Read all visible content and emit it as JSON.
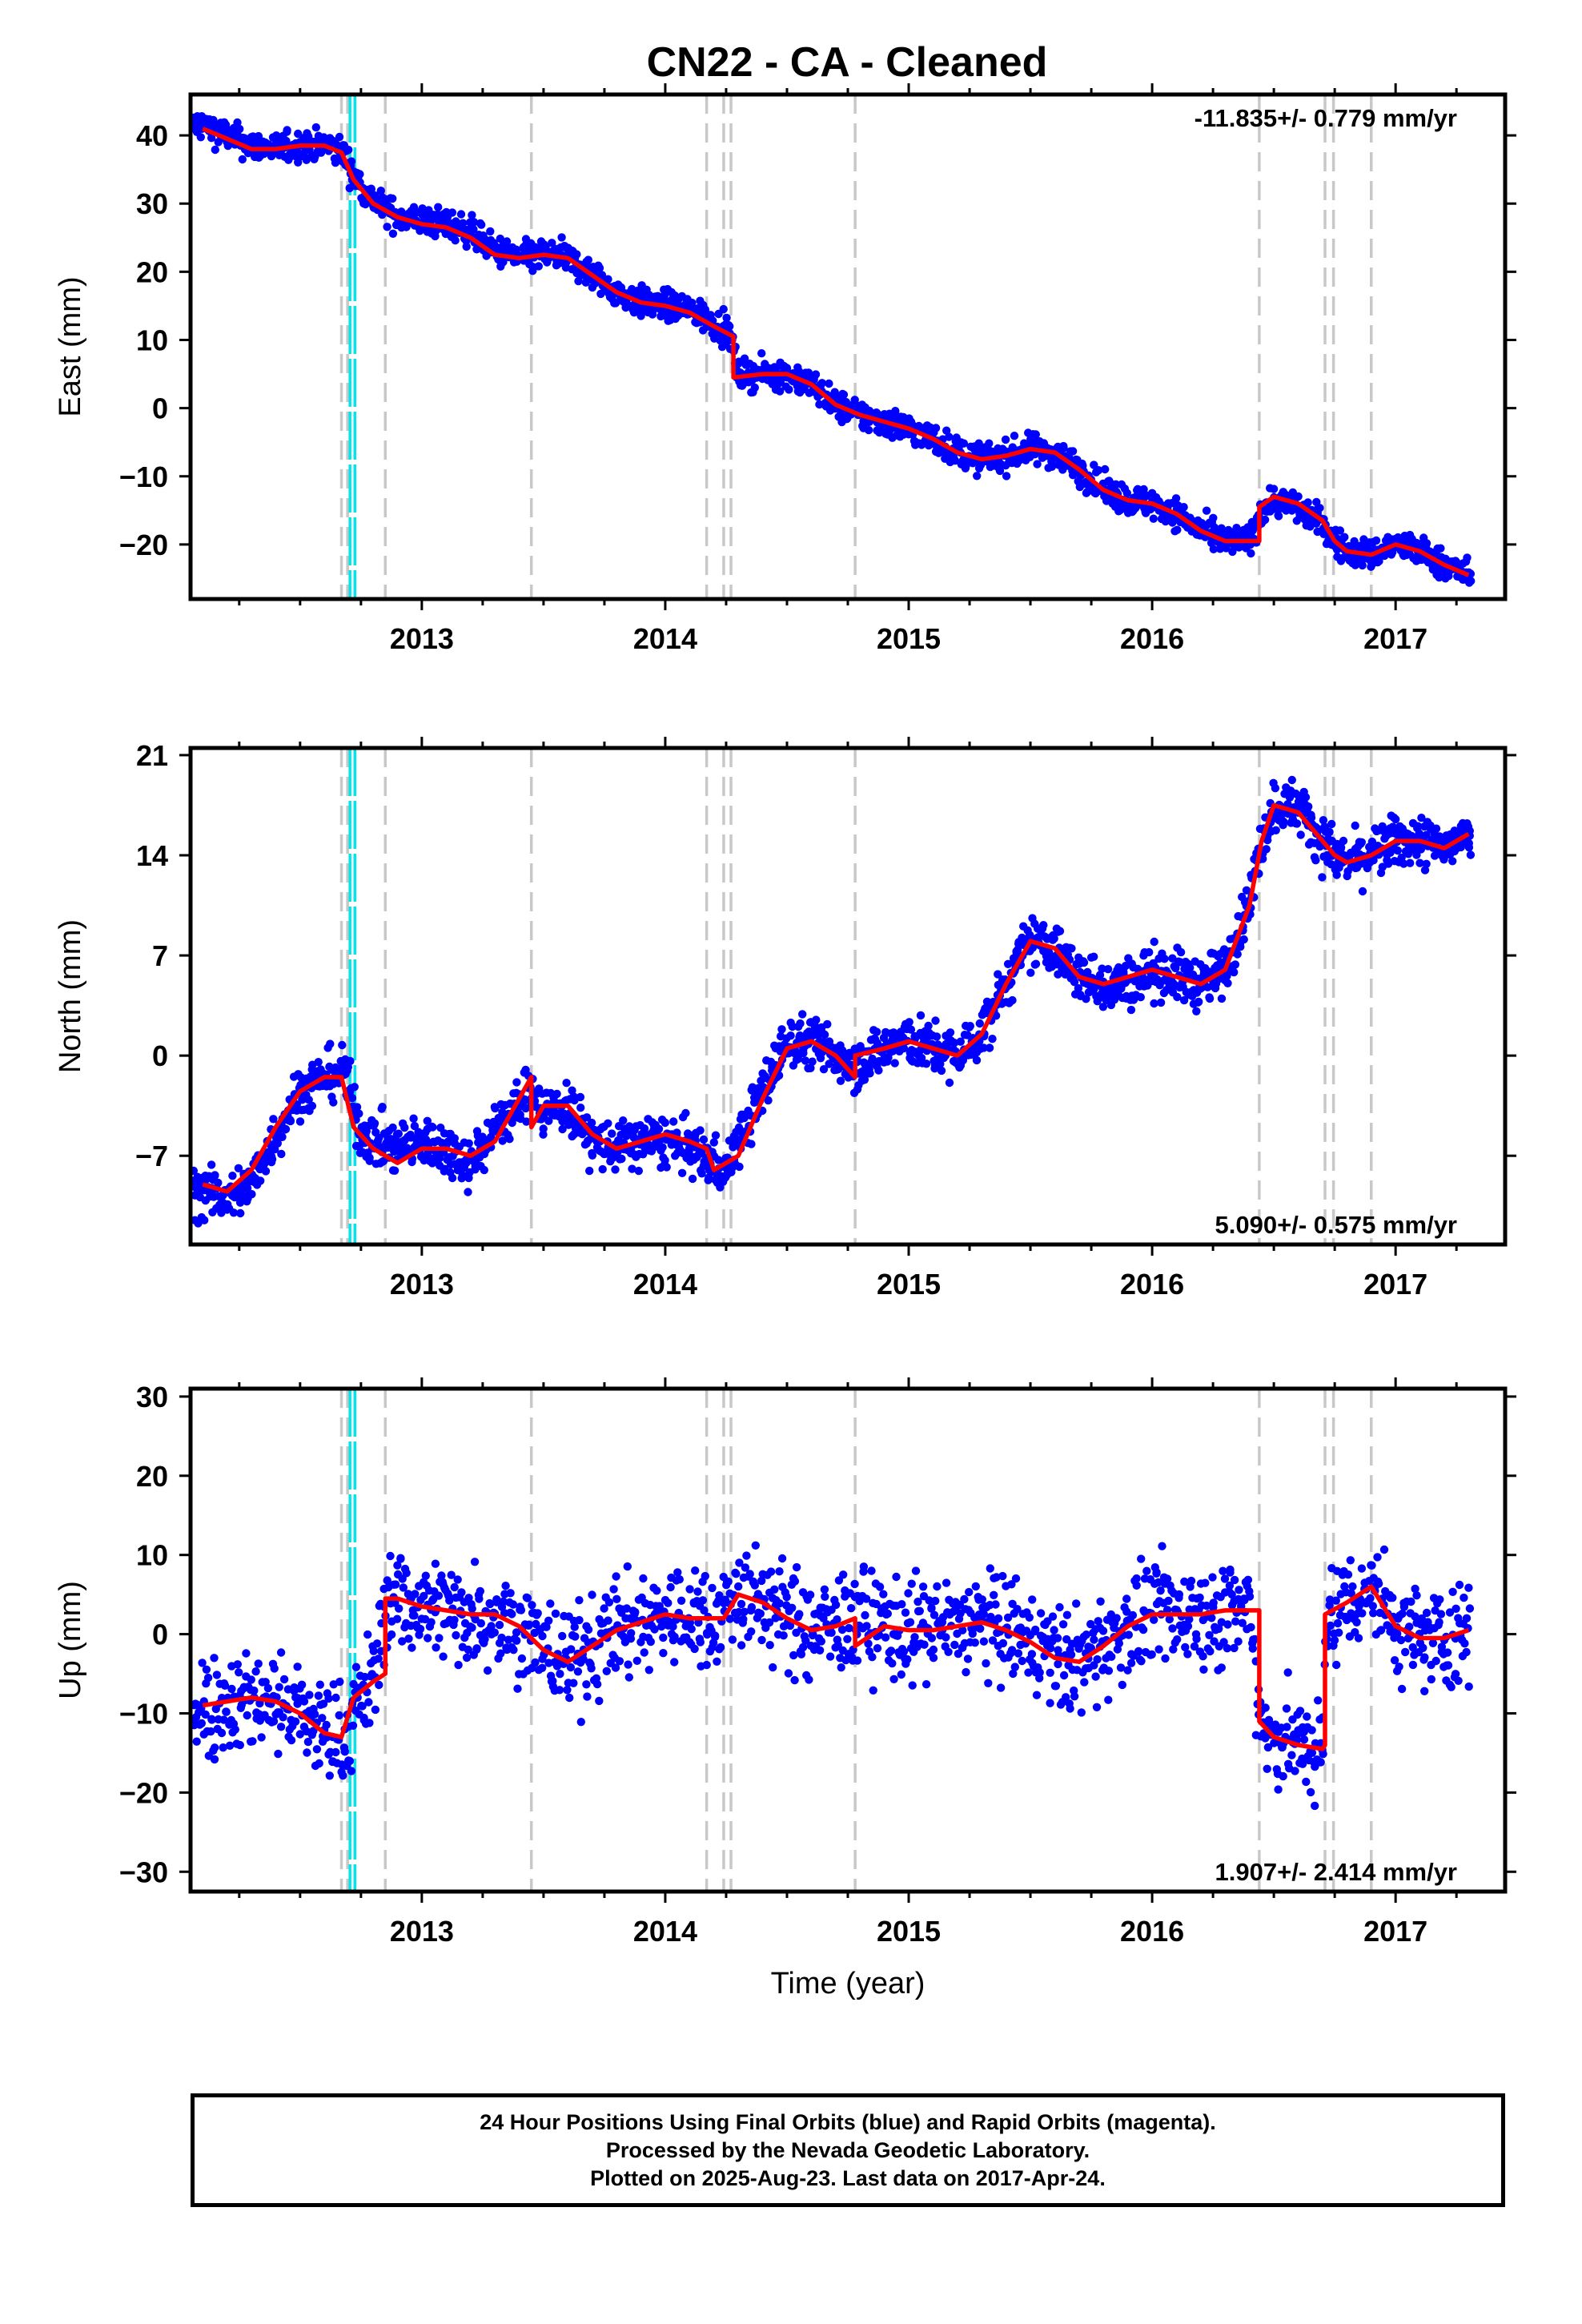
{
  "title": "CN22  - CA - Cleaned",
  "colors": {
    "data_points": "#0000ff",
    "model": "#ff0000",
    "event_lines": "#c8c8c8",
    "cyan_lines": "#00e5ee",
    "frame": "#000000"
  },
  "event_lines": [
    2012.67,
    2012.695,
    2012.85,
    2013.45,
    2014.17,
    2014.24,
    2014.27,
    2014.78,
    2016.44,
    2016.71,
    2016.745,
    2016.9
  ],
  "cyan_lines": [
    2012.705,
    2012.725
  ],
  "xlabel": "Time (year)",
  "footer": {
    "line1": "24 Hour Positions Using Final Orbits (blue) and Rapid Orbits (magenta).",
    "line2": "Processed by the Nevada Geodetic Laboratory.",
    "line3": "Plotted on 2025-Aug-23. Last data on 2017-Apr-24."
  },
  "chart_data": [
    {
      "type": "scatter",
      "component": "east",
      "ylabel": "East (mm)",
      "rate_text": "-11.835+/- 0.779 mm/yr",
      "xlim": [
        2012.05,
        2017.45
      ],
      "ylim": [
        -28,
        46
      ],
      "xticks": [
        2013,
        2014,
        2015,
        2016,
        2017
      ],
      "yticks": [
        -20,
        -10,
        0,
        10,
        20,
        30,
        40
      ],
      "series": [
        {
          "role": "observations",
          "x": [
            2012.1,
            2012.2,
            2012.3,
            2012.4,
            2012.5,
            2012.6,
            2012.68,
            2012.72,
            2012.8,
            2012.9,
            2013.0,
            2013.1,
            2013.2,
            2013.3,
            2013.4,
            2013.5,
            2013.6,
            2013.7,
            2013.8,
            2013.9,
            2014.0,
            2014.1,
            2014.2,
            2014.27,
            2014.3,
            2014.4,
            2014.5,
            2014.6,
            2014.7,
            2014.8,
            2014.9,
            2015.0,
            2015.1,
            2015.2,
            2015.3,
            2015.4,
            2015.5,
            2015.6,
            2015.7,
            2015.8,
            2015.9,
            2016.0,
            2016.1,
            2016.2,
            2016.3,
            2016.4,
            2016.45,
            2016.5,
            2016.6,
            2016.7,
            2016.75,
            2016.8,
            2016.9,
            2017.0,
            2017.1,
            2017.2,
            2017.3
          ],
          "y": [
            41.5,
            40.0,
            38.5,
            38.0,
            38.5,
            38.5,
            37.5,
            34.0,
            30.5,
            28.0,
            27.5,
            27.0,
            26.0,
            23.0,
            22.0,
            22.5,
            22.0,
            19.5,
            17.0,
            15.5,
            15.0,
            14.5,
            12.5,
            10.5,
            5.0,
            5.0,
            5.0,
            3.5,
            0.5,
            -1.0,
            -2.0,
            -3.0,
            -4.5,
            -6.5,
            -7.5,
            -7.0,
            -6.0,
            -6.5,
            -9.0,
            -12.0,
            -13.5,
            -14.0,
            -15.5,
            -18.0,
            -19.5,
            -19.5,
            -15.0,
            -13.5,
            -14.5,
            -17.0,
            -19.5,
            -21.0,
            -21.5,
            -20.0,
            -21.0,
            -23.0,
            -24.5
          ]
        },
        {
          "role": "model",
          "x": [
            2012.1,
            2012.2,
            2012.3,
            2012.4,
            2012.5,
            2012.6,
            2012.67,
            2012.72,
            2012.8,
            2012.9,
            2013.0,
            2013.1,
            2013.2,
            2013.3,
            2013.4,
            2013.5,
            2013.6,
            2013.7,
            2013.8,
            2013.9,
            2014.0,
            2014.1,
            2014.2,
            2014.28,
            2014.28,
            2014.4,
            2014.5,
            2014.6,
            2014.7,
            2014.8,
            2014.9,
            2015.0,
            2015.1,
            2015.2,
            2015.3,
            2015.4,
            2015.5,
            2015.6,
            2015.7,
            2015.8,
            2015.9,
            2016.0,
            2016.1,
            2016.2,
            2016.3,
            2016.44,
            2016.44,
            2016.5,
            2016.6,
            2016.7,
            2016.75,
            2016.8,
            2016.9,
            2017.0,
            2017.1,
            2017.2,
            2017.3
          ],
          "y": [
            41.0,
            39.5,
            38.0,
            38.0,
            38.5,
            38.5,
            37.5,
            33.5,
            30.0,
            28.0,
            27.0,
            26.5,
            25.0,
            22.5,
            22.0,
            22.5,
            22.0,
            19.5,
            17.0,
            15.5,
            15.0,
            14.0,
            12.0,
            10.5,
            4.5,
            5.0,
            5.0,
            3.5,
            0.5,
            -1.0,
            -2.0,
            -3.0,
            -4.5,
            -6.5,
            -7.5,
            -7.0,
            -6.0,
            -6.5,
            -9.0,
            -12.0,
            -13.5,
            -14.0,
            -15.5,
            -18.0,
            -19.5,
            -19.5,
            -14.5,
            -13.0,
            -14.0,
            -16.5,
            -19.5,
            -21.0,
            -21.5,
            -20.0,
            -21.0,
            -23.0,
            -24.5
          ]
        }
      ]
    },
    {
      "type": "scatter",
      "component": "north",
      "ylabel": "North (mm)",
      "rate_text": "5.090+/- 0.575 mm/yr",
      "xlim": [
        2012.05,
        2017.45
      ],
      "ylim": [
        -13.2,
        21.5
      ],
      "xticks": [
        2013,
        2014,
        2015,
        2016,
        2017
      ],
      "yticks": [
        -7,
        0,
        7,
        14,
        21
      ],
      "series": [
        {
          "role": "observations",
          "x": [
            2012.1,
            2012.2,
            2012.3,
            2012.4,
            2012.5,
            2012.6,
            2012.68,
            2012.75,
            2012.9,
            2013.0,
            2013.1,
            2013.2,
            2013.3,
            2013.4,
            2013.45,
            2013.5,
            2013.6,
            2013.7,
            2013.8,
            2013.9,
            2014.0,
            2014.1,
            2014.2,
            2014.25,
            2014.3,
            2014.4,
            2014.5,
            2014.6,
            2014.7,
            2014.8,
            2014.9,
            2015.0,
            2015.1,
            2015.2,
            2015.3,
            2015.4,
            2015.5,
            2015.6,
            2015.7,
            2015.8,
            2015.9,
            2016.0,
            2016.1,
            2016.2,
            2016.3,
            2016.4,
            2016.45,
            2016.5,
            2016.6,
            2016.7,
            2016.75,
            2016.8,
            2016.9,
            2017.0,
            2017.1,
            2017.2,
            2017.3
          ],
          "y": [
            -9.5,
            -10.0,
            -9.0,
            -5.5,
            -2.5,
            -1.5,
            -1.0,
            -5.5,
            -6.5,
            -6.0,
            -6.5,
            -7.5,
            -5.0,
            -3.5,
            -2.0,
            -4.0,
            -3.5,
            -6.0,
            -6.5,
            -6.0,
            -6.0,
            -6.5,
            -7.5,
            -8.0,
            -6.0,
            -2.5,
            1.0,
            1.0,
            0.0,
            -0.5,
            0.5,
            1.0,
            0.5,
            0.0,
            1.5,
            5.0,
            8.0,
            7.5,
            5.5,
            5.0,
            5.0,
            6.0,
            5.5,
            5.0,
            6.0,
            11.0,
            15.0,
            17.5,
            17.5,
            15.0,
            14.0,
            13.5,
            14.0,
            15.0,
            15.0,
            14.5,
            15.5
          ]
        },
        {
          "role": "model",
          "x": [
            2012.1,
            2012.2,
            2012.3,
            2012.4,
            2012.5,
            2012.6,
            2012.67,
            2012.72,
            2012.8,
            2012.9,
            2013.0,
            2013.1,
            2013.2,
            2013.3,
            2013.45,
            2013.45,
            2013.5,
            2013.6,
            2013.7,
            2013.8,
            2013.9,
            2014.0,
            2014.1,
            2014.17,
            2014.2,
            2014.3,
            2014.4,
            2014.5,
            2014.6,
            2014.7,
            2014.78,
            2014.78,
            2014.9,
            2015.0,
            2015.1,
            2015.2,
            2015.3,
            2015.4,
            2015.5,
            2015.6,
            2015.7,
            2015.8,
            2015.9,
            2016.0,
            2016.1,
            2016.2,
            2016.3,
            2016.4,
            2016.45,
            2016.5,
            2016.6,
            2016.7,
            2016.75,
            2016.8,
            2016.9,
            2017.0,
            2017.1,
            2017.2,
            2017.3
          ],
          "y": [
            -9.0,
            -9.5,
            -8.0,
            -5.0,
            -2.5,
            -1.5,
            -1.5,
            -5.0,
            -6.5,
            -7.5,
            -6.5,
            -6.5,
            -7.0,
            -6.0,
            -1.5,
            -5.0,
            -3.5,
            -3.5,
            -5.5,
            -6.5,
            -6.0,
            -5.5,
            -6.0,
            -6.5,
            -8.0,
            -7.0,
            -3.0,
            0.5,
            1.0,
            0.0,
            -1.5,
            0.0,
            0.5,
            1.0,
            0.5,
            0.0,
            1.5,
            5.0,
            8.0,
            7.5,
            5.5,
            5.0,
            5.5,
            6.0,
            5.5,
            5.0,
            6.0,
            10.5,
            15.0,
            17.5,
            17.0,
            15.0,
            14.0,
            13.5,
            14.0,
            15.0,
            15.0,
            14.5,
            15.5
          ]
        }
      ]
    },
    {
      "type": "scatter",
      "component": "up",
      "ylabel": "Up (mm)",
      "rate_text": "1.907+/- 2.414 mm/yr",
      "xlim": [
        2012.05,
        2017.45
      ],
      "ylim": [
        -32.5,
        31
      ],
      "xticks": [
        2013,
        2014,
        2015,
        2016,
        2017
      ],
      "yticks": [
        -30,
        -20,
        -10,
        0,
        10,
        20,
        30
      ],
      "series": [
        {
          "role": "observations",
          "x": [
            2012.1,
            2012.2,
            2012.3,
            2012.4,
            2012.5,
            2012.6,
            2012.68,
            2012.75,
            2012.8,
            2012.86,
            2012.9,
            2013.0,
            2013.1,
            2013.2,
            2013.3,
            2013.4,
            2013.5,
            2013.6,
            2013.7,
            2013.8,
            2013.9,
            2014.0,
            2014.1,
            2014.2,
            2014.3,
            2014.4,
            2014.5,
            2014.6,
            2014.7,
            2014.8,
            2014.9,
            2015.0,
            2015.1,
            2015.2,
            2015.3,
            2015.4,
            2015.5,
            2015.6,
            2015.7,
            2015.8,
            2015.9,
            2016.0,
            2016.1,
            2016.2,
            2016.3,
            2016.4,
            2016.45,
            2016.5,
            2016.6,
            2016.7,
            2016.72,
            2016.8,
            2016.9,
            2017.0,
            2017.1,
            2017.2,
            2017.3
          ],
          "y": [
            -9.0,
            -8.5,
            -8.0,
            -8.5,
            -10.0,
            -12.5,
            -13.0,
            -8.0,
            -6.0,
            5.0,
            4.5,
            3.5,
            3.0,
            2.5,
            2.5,
            1.0,
            -2.0,
            -3.5,
            -1.5,
            0.5,
            1.5,
            2.5,
            2.0,
            2.0,
            5.0,
            4.0,
            2.0,
            0.5,
            1.0,
            2.0,
            1.0,
            0.5,
            0.5,
            1.0,
            1.5,
            0.5,
            -1.0,
            -3.0,
            -3.5,
            -1.5,
            1.0,
            2.5,
            2.5,
            2.5,
            3.0,
            3.0,
            -11.0,
            -13.0,
            -14.0,
            -15.0,
            2.5,
            4.0,
            6.0,
            1.0,
            -0.5,
            -0.5,
            0.5
          ]
        },
        {
          "role": "model",
          "x": [
            2012.1,
            2012.2,
            2012.3,
            2012.4,
            2012.5,
            2012.6,
            2012.67,
            2012.72,
            2012.8,
            2012.85,
            2012.85,
            2012.9,
            2013.0,
            2013.1,
            2013.2,
            2013.3,
            2013.4,
            2013.5,
            2013.6,
            2013.7,
            2013.8,
            2013.9,
            2014.0,
            2014.1,
            2014.2,
            2014.24,
            2014.3,
            2014.4,
            2014.5,
            2014.6,
            2014.7,
            2014.78,
            2014.78,
            2014.9,
            2015.0,
            2015.1,
            2015.2,
            2015.3,
            2015.4,
            2015.5,
            2015.6,
            2015.7,
            2015.8,
            2015.9,
            2016.0,
            2016.1,
            2016.2,
            2016.3,
            2016.44,
            2016.44,
            2016.5,
            2016.6,
            2016.7,
            2016.71,
            2016.71,
            2016.8,
            2016.9,
            2017.0,
            2017.1,
            2017.2,
            2017.3
          ],
          "y": [
            -9.0,
            -8.5,
            -8.0,
            -8.5,
            -10.0,
            -12.5,
            -13.0,
            -8.0,
            -6.0,
            -5.0,
            4.5,
            4.5,
            3.5,
            3.0,
            2.5,
            2.5,
            1.0,
            -2.0,
            -3.5,
            -1.5,
            0.5,
            1.5,
            2.5,
            2.0,
            2.0,
            2.0,
            5.0,
            4.0,
            2.0,
            0.5,
            1.0,
            2.0,
            -1.5,
            1.0,
            0.5,
            0.5,
            1.0,
            1.5,
            0.5,
            -1.0,
            -3.0,
            -3.5,
            -1.5,
            1.0,
            2.5,
            2.5,
            2.5,
            3.0,
            3.0,
            -11.0,
            -13.0,
            -14.0,
            -14.5,
            -14.0,
            2.5,
            4.0,
            6.0,
            1.0,
            -0.5,
            -0.5,
            0.5
          ]
        }
      ]
    }
  ]
}
